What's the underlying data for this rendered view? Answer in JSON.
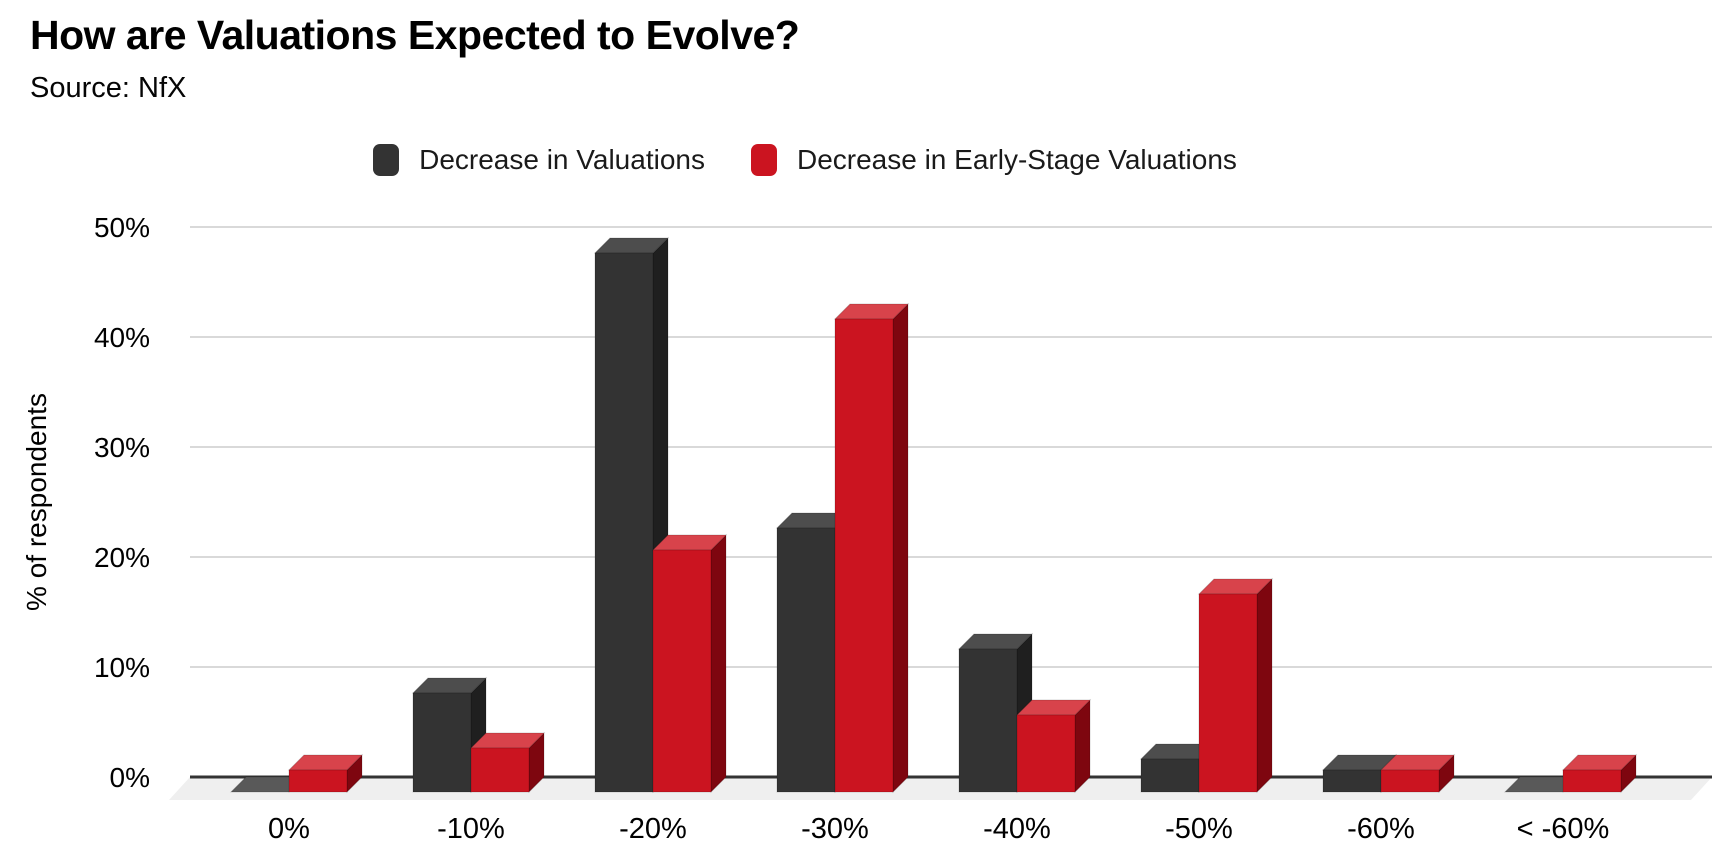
{
  "header": {
    "title": "How are Valuations Expected to Evolve?",
    "source": "Source: NfX"
  },
  "legend": [
    {
      "label": "Decrease in Valuations",
      "color": "#333333"
    },
    {
      "label": "Decrease in Early-Stage Valuations",
      "color": "#CB1420"
    }
  ],
  "chart_data": {
    "type": "bar",
    "subtype": "3d-grouped-column",
    "title": "How are Valuations Expected to Evolve?",
    "categories": [
      "0%",
      "-10%",
      "-20%",
      "-30%",
      "-40%",
      "-50%",
      "-60%",
      "< -60%"
    ],
    "series": [
      {
        "name": "Decrease in Valuations",
        "values": [
          0,
          9,
          49,
          24,
          13,
          3,
          2,
          0
        ],
        "color": "#333333",
        "color_top": "#4d4d4d",
        "color_side": "#1f1f1f",
        "color_flat": "#595959"
      },
      {
        "name": "Decrease in Early-Stage Valuations",
        "values": [
          2,
          4,
          22,
          43,
          7,
          18,
          2,
          2
        ],
        "color": "#CB1420",
        "color_top": "#D8434B",
        "color_side": "#7E060F",
        "color_flat": "#DD7A7E"
      }
    ],
    "xlabel": "",
    "ylabel": "% of respondents",
    "ylim": [
      0,
      50
    ],
    "y_ticks": [
      {
        "value": 0,
        "label": "0%"
      },
      {
        "value": 10,
        "label": "10%"
      },
      {
        "value": 20,
        "label": "20%"
      },
      {
        "value": 30,
        "label": "30%"
      },
      {
        "value": 40,
        "label": "40%"
      },
      {
        "value": 50,
        "label": "50%"
      }
    ],
    "grid": true,
    "legend_position": "top",
    "colors": {
      "gridline": "#d9d9d9",
      "axis_line": "#333333",
      "floor": "#efefef",
      "tick_text": "#000000"
    }
  }
}
